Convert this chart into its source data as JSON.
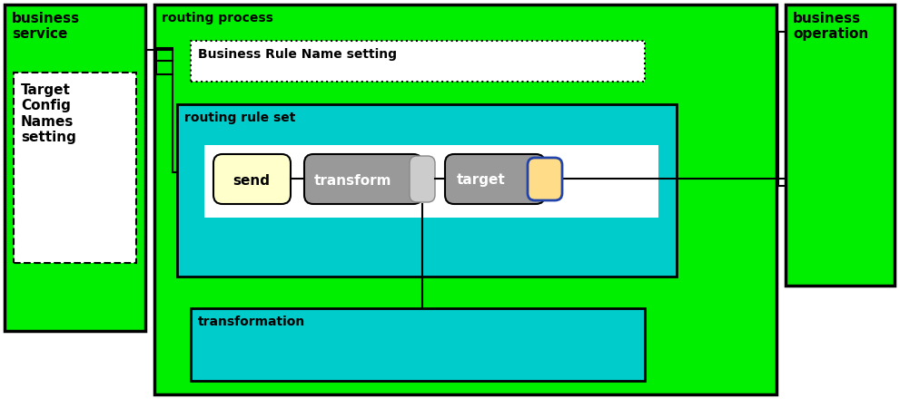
{
  "bg_color": "#ffffff",
  "green": "#00ee00",
  "cyan": "#00cccc",
  "white": "#ffffff",
  "gray_dark": "#999999",
  "gray_light": "#bbbbbb",
  "send_color": "#ffffcc",
  "target_icon_color": "#ffdd88",
  "target_icon_border": "#2244aa",
  "figw": 9.91,
  "figh": 4.5,
  "dpi": 100,
  "bs_label": "business\nservice",
  "bs_inner_label": "Target\nConfig\nNames\nsetting",
  "bo_label": "business\noperation",
  "rp_label": "routing process",
  "brn_label": "Business Rule Name setting",
  "rrs_label": "routing rule set",
  "trans_label": "transformation",
  "send_label": "send",
  "transform_label": "transform",
  "target_label": "target"
}
